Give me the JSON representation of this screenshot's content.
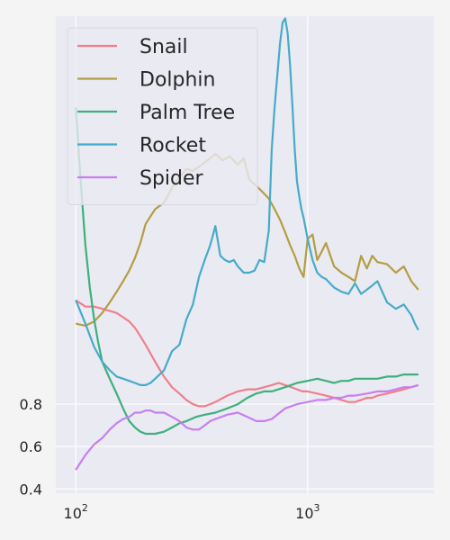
{
  "chart_data": {
    "type": "line",
    "title": "",
    "xlabel": "",
    "ylabel": "",
    "x_scale": "log",
    "xlim": [
      82,
      3500
    ],
    "ylim": [
      0.38,
      2.63
    ],
    "grid": true,
    "legend_position": "upper-left",
    "y_ticks": [
      {
        "value": 0.4,
        "label": "0.4"
      },
      {
        "value": 0.6,
        "label": "0.6"
      },
      {
        "value": 0.8,
        "label": "0.8"
      }
    ],
    "x_ticks": [
      {
        "value": 100,
        "base": "10",
        "exp": "2"
      },
      {
        "value": 1000,
        "base": "10",
        "exp": "3"
      }
    ],
    "series": [
      {
        "name": "Snail",
        "color": "#f07f8b",
        "x": [
          100,
          110,
          120,
          130,
          140,
          150,
          160,
          170,
          180,
          190,
          200,
          220,
          240,
          260,
          280,
          300,
          320,
          340,
          360,
          380,
          400,
          450,
          500,
          550,
          600,
          650,
          700,
          750,
          800,
          850,
          900,
          950,
          1000,
          1100,
          1200,
          1300,
          1400,
          1500,
          1600,
          1700,
          1800,
          1900,
          2000,
          2200,
          2400,
          2600,
          2800,
          3000
        ],
        "y": [
          1.29,
          1.26,
          1.26,
          1.25,
          1.24,
          1.23,
          1.21,
          1.19,
          1.16,
          1.12,
          1.08,
          1.0,
          0.93,
          0.88,
          0.85,
          0.82,
          0.8,
          0.79,
          0.79,
          0.8,
          0.81,
          0.84,
          0.86,
          0.87,
          0.87,
          0.88,
          0.89,
          0.9,
          0.89,
          0.88,
          0.87,
          0.86,
          0.86,
          0.85,
          0.84,
          0.83,
          0.82,
          0.81,
          0.81,
          0.82,
          0.83,
          0.83,
          0.84,
          0.85,
          0.86,
          0.87,
          0.88,
          0.89
        ]
      },
      {
        "name": "Dolphin",
        "color": "#b59d43",
        "x": [
          100,
          110,
          120,
          130,
          140,
          150,
          160,
          170,
          180,
          190,
          200,
          220,
          240,
          260,
          280,
          300,
          320,
          340,
          360,
          380,
          400,
          430,
          460,
          500,
          530,
          560,
          600,
          640,
          680,
          720,
          760,
          800,
          840,
          880,
          920,
          960,
          1000,
          1050,
          1100,
          1150,
          1200,
          1300,
          1400,
          1500,
          1600,
          1700,
          1800,
          1900,
          2000,
          2200,
          2400,
          2600,
          2800,
          3000
        ],
        "y": [
          1.18,
          1.17,
          1.19,
          1.23,
          1.28,
          1.33,
          1.38,
          1.43,
          1.49,
          1.56,
          1.65,
          1.72,
          1.75,
          1.82,
          1.87,
          1.91,
          1.9,
          1.92,
          1.94,
          1.96,
          1.98,
          1.95,
          1.97,
          1.93,
          1.96,
          1.86,
          1.83,
          1.8,
          1.77,
          1.72,
          1.67,
          1.61,
          1.55,
          1.5,
          1.44,
          1.4,
          1.58,
          1.6,
          1.48,
          1.52,
          1.56,
          1.45,
          1.42,
          1.4,
          1.38,
          1.5,
          1.44,
          1.5,
          1.47,
          1.46,
          1.42,
          1.45,
          1.38,
          1.34
        ]
      },
      {
        "name": "Palm Tree",
        "color": "#3db07c",
        "x": [
          100,
          105,
          110,
          115,
          120,
          125,
          130,
          140,
          150,
          160,
          170,
          180,
          190,
          200,
          210,
          220,
          240,
          260,
          280,
          300,
          330,
          360,
          400,
          450,
          500,
          550,
          600,
          650,
          700,
          800,
          900,
          1000,
          1100,
          1200,
          1300,
          1400,
          1500,
          1600,
          1800,
          2000,
          2200,
          2400,
          2600,
          2800,
          3000
        ],
        "y": [
          2.2,
          1.85,
          1.55,
          1.35,
          1.2,
          1.09,
          1.0,
          0.92,
          0.85,
          0.78,
          0.72,
          0.69,
          0.67,
          0.66,
          0.66,
          0.66,
          0.67,
          0.69,
          0.71,
          0.72,
          0.74,
          0.75,
          0.76,
          0.78,
          0.8,
          0.83,
          0.85,
          0.86,
          0.86,
          0.88,
          0.9,
          0.91,
          0.92,
          0.91,
          0.9,
          0.91,
          0.91,
          0.92,
          0.92,
          0.92,
          0.93,
          0.93,
          0.94,
          0.94,
          0.94
        ]
      },
      {
        "name": "Rocket",
        "color": "#46abc9",
        "x": [
          100,
          110,
          120,
          130,
          140,
          150,
          160,
          170,
          180,
          190,
          200,
          210,
          220,
          240,
          260,
          280,
          300,
          320,
          340,
          360,
          380,
          400,
          420,
          440,
          460,
          480,
          500,
          530,
          560,
          590,
          620,
          650,
          680,
          700,
          720,
          740,
          760,
          780,
          800,
          820,
          840,
          860,
          880,
          900,
          920,
          940,
          960,
          1000,
          1050,
          1100,
          1150,
          1200,
          1300,
          1400,
          1500,
          1600,
          1700,
          1800,
          1900,
          2000,
          2200,
          2400,
          2600,
          2800,
          2900,
          3000
        ],
        "y": [
          1.29,
          1.18,
          1.07,
          1.0,
          0.96,
          0.93,
          0.92,
          0.91,
          0.9,
          0.89,
          0.89,
          0.9,
          0.92,
          0.96,
          1.05,
          1.08,
          1.2,
          1.27,
          1.4,
          1.48,
          1.55,
          1.64,
          1.5,
          1.48,
          1.47,
          1.48,
          1.45,
          1.42,
          1.42,
          1.43,
          1.48,
          1.47,
          1.62,
          2.0,
          2.2,
          2.35,
          2.5,
          2.6,
          2.62,
          2.55,
          2.4,
          2.2,
          2.0,
          1.85,
          1.78,
          1.72,
          1.68,
          1.58,
          1.48,
          1.42,
          1.4,
          1.39,
          1.35,
          1.33,
          1.32,
          1.37,
          1.32,
          1.34,
          1.36,
          1.38,
          1.28,
          1.25,
          1.27,
          1.22,
          1.18,
          1.15
        ]
      },
      {
        "name": "Spider",
        "color": "#c77ff0",
        "x": [
          100,
          110,
          120,
          130,
          140,
          150,
          160,
          170,
          180,
          190,
          200,
          210,
          220,
          240,
          260,
          280,
          300,
          320,
          340,
          360,
          380,
          400,
          450,
          500,
          550,
          600,
          650,
          700,
          800,
          900,
          1000,
          1100,
          1200,
          1300,
          1400,
          1500,
          1600,
          1800,
          2000,
          2200,
          2400,
          2600,
          2800,
          3000
        ],
        "y": [
          0.49,
          0.56,
          0.61,
          0.64,
          0.68,
          0.71,
          0.73,
          0.74,
          0.76,
          0.76,
          0.77,
          0.77,
          0.76,
          0.76,
          0.74,
          0.72,
          0.69,
          0.68,
          0.68,
          0.7,
          0.72,
          0.73,
          0.75,
          0.76,
          0.74,
          0.72,
          0.72,
          0.73,
          0.78,
          0.8,
          0.81,
          0.82,
          0.82,
          0.83,
          0.83,
          0.84,
          0.84,
          0.85,
          0.86,
          0.86,
          0.87,
          0.88,
          0.88,
          0.89
        ]
      }
    ]
  }
}
